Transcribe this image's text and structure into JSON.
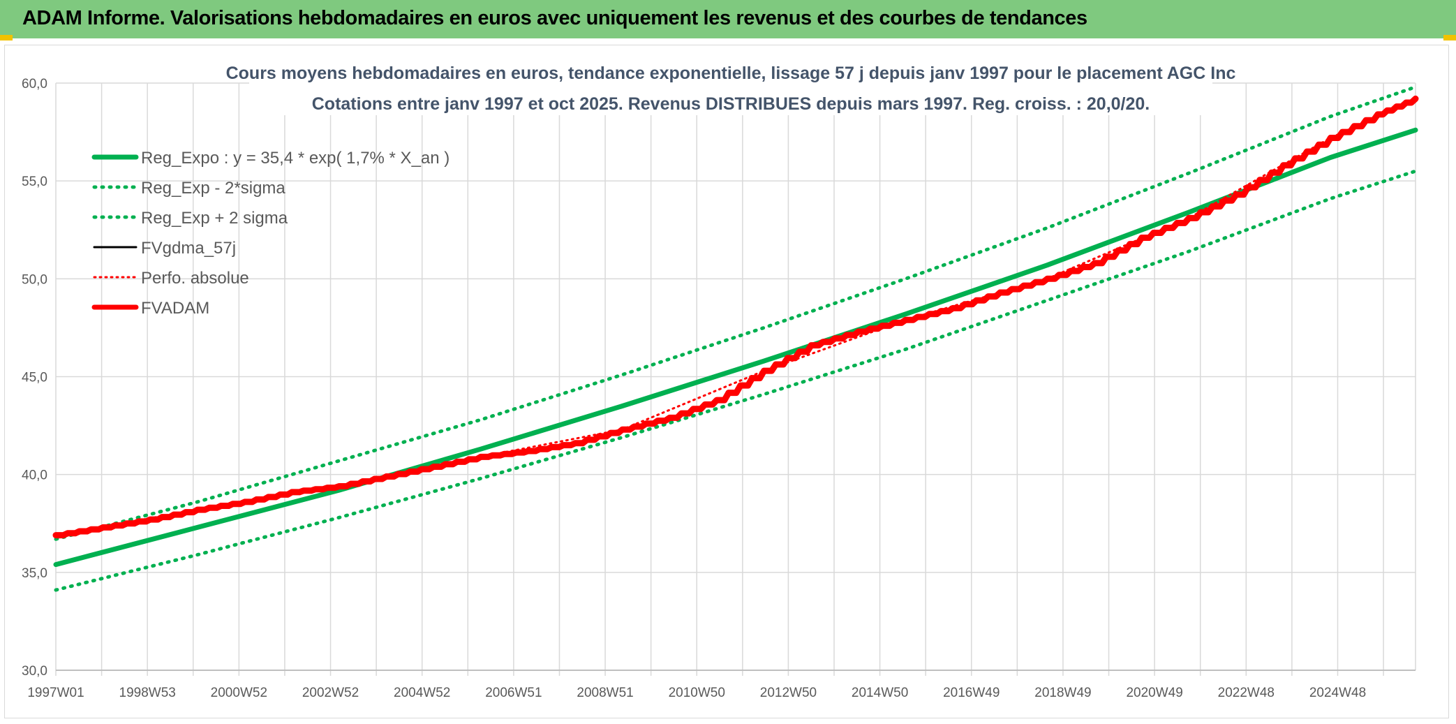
{
  "page": {
    "banner_title": "ADAM Informe. Valorisations hebdomadaires en euros avec uniquement les revenus et des courbes de tendances"
  },
  "colors": {
    "banner": "#7fc97f",
    "green": "#00b050",
    "red": "#ff0000",
    "black": "#000000",
    "grid": "#d9d9d9",
    "axis_text": "#595959",
    "title_text": "#44546a"
  },
  "chart_data": {
    "type": "line",
    "title": "Cours moyens hebdomadaires en euros, tendance exponentielle, lissage 57 j depuis janv 1997 pour le placement AGC Inc",
    "subtitle": "Cotations entre janv 1997 et oct 2025. Revenus DISTRIBUES depuis mars 1997. Reg. croiss. : 20,0/20.",
    "xlabel": "",
    "ylabel": "",
    "x_range": [
      1997.0,
      2025.8
    ],
    "ylim": [
      30,
      60
    ],
    "yticks": [
      "30,0",
      "35,0",
      "40,0",
      "45,0",
      "50,0",
      "55,0",
      "60,0"
    ],
    "xtick_labels": [
      "1997W01",
      "1998W53",
      "2000W52",
      "2002W52",
      "2004W52",
      "2006W51",
      "2008W51",
      "2010W50",
      "2012W50",
      "2014W50",
      "2016W49",
      "2018W49",
      "2020W49",
      "2022W48",
      "2024W48"
    ],
    "grid": true,
    "legend_position": "top-left",
    "series": [
      {
        "name": "Reg_Expo : y = 35,4 * exp( 1,7% *  X_an )",
        "style": "solid-green",
        "x": [
          1997.0,
          2000.0,
          2003.0,
          2006.0,
          2009.0,
          2012.0,
          2015.0,
          2018.0,
          2021.0,
          2024.0,
          2025.8
        ],
        "values": [
          35.4,
          37.3,
          39.2,
          41.3,
          43.5,
          45.8,
          48.2,
          50.7,
          53.4,
          56.2,
          57.6
        ]
      },
      {
        "name": "Reg_Exp - 2*sigma",
        "style": "dotted-green",
        "x": [
          1997.0,
          2000.0,
          2003.0,
          2006.0,
          2009.0,
          2012.0,
          2015.0,
          2018.0,
          2021.0,
          2024.0,
          2025.8
        ],
        "values": [
          34.1,
          35.9,
          37.8,
          39.8,
          41.9,
          44.1,
          46.4,
          48.9,
          51.4,
          54.1,
          55.5
        ]
      },
      {
        "name": "Reg_Exp + 2 sigma",
        "style": "dotted-green",
        "x": [
          1997.0,
          2000.0,
          2003.0,
          2006.0,
          2009.0,
          2012.0,
          2015.0,
          2018.0,
          2021.0,
          2024.0,
          2025.8
        ],
        "values": [
          36.7,
          38.6,
          40.7,
          42.8,
          45.1,
          47.5,
          50.0,
          52.6,
          55.4,
          58.3,
          59.8
        ]
      },
      {
        "name": "FVgdma_57j",
        "style": "solid-black",
        "x": [
          1997.0,
          1998.0,
          1999.0,
          2000.0,
          2001.0,
          2002.0,
          2003.0,
          2004.0,
          2005.0,
          2006.0,
          2007.0,
          2008.0,
          2009.0,
          2010.0,
          2011.0,
          2012.0,
          2013.0,
          2014.0,
          2015.0,
          2016.0,
          2017.0,
          2018.0,
          2019.0,
          2020.0,
          2021.0,
          2022.0,
          2023.0,
          2024.0,
          2025.0,
          2025.8
        ],
        "values": [
          36.9,
          37.3,
          37.7,
          38.2,
          38.6,
          39.1,
          39.4,
          39.9,
          40.4,
          40.9,
          41.2,
          41.6,
          42.3,
          42.9,
          43.8,
          45.3,
          46.6,
          47.3,
          47.9,
          48.5,
          49.3,
          50.0,
          50.8,
          52.1,
          53.1,
          54.3,
          55.8,
          57.2,
          58.4,
          59.2
        ]
      },
      {
        "name": "Perfo. absolue",
        "style": "dotted-red",
        "x": [
          1997.0,
          2000.0,
          2003.0,
          2006.0,
          2009.0,
          2012.0,
          2015.0,
          2018.0,
          2021.0,
          2024.0,
          2025.8
        ],
        "values": [
          36.9,
          38.2,
          39.4,
          40.9,
          42.3,
          45.3,
          47.9,
          50.0,
          53.1,
          57.2,
          59.2
        ]
      },
      {
        "name": "FVADAM",
        "style": "solid-red-thick",
        "x": [
          1997.0,
          1998.0,
          1999.0,
          2000.0,
          2001.0,
          2002.0,
          2003.0,
          2004.0,
          2005.0,
          2006.0,
          2007.0,
          2008.0,
          2009.0,
          2010.0,
          2011.0,
          2012.0,
          2013.0,
          2014.0,
          2015.0,
          2016.0,
          2017.0,
          2018.0,
          2019.0,
          2020.0,
          2021.0,
          2022.0,
          2023.0,
          2024.0,
          2025.0,
          2025.8
        ],
        "values": [
          36.9,
          37.3,
          37.7,
          38.2,
          38.6,
          39.1,
          39.4,
          39.9,
          40.4,
          40.9,
          41.2,
          41.6,
          42.3,
          42.9,
          43.8,
          45.3,
          46.6,
          47.3,
          47.9,
          48.5,
          49.3,
          50.0,
          50.8,
          52.1,
          53.1,
          54.3,
          55.8,
          57.2,
          58.4,
          59.2
        ]
      }
    ]
  }
}
